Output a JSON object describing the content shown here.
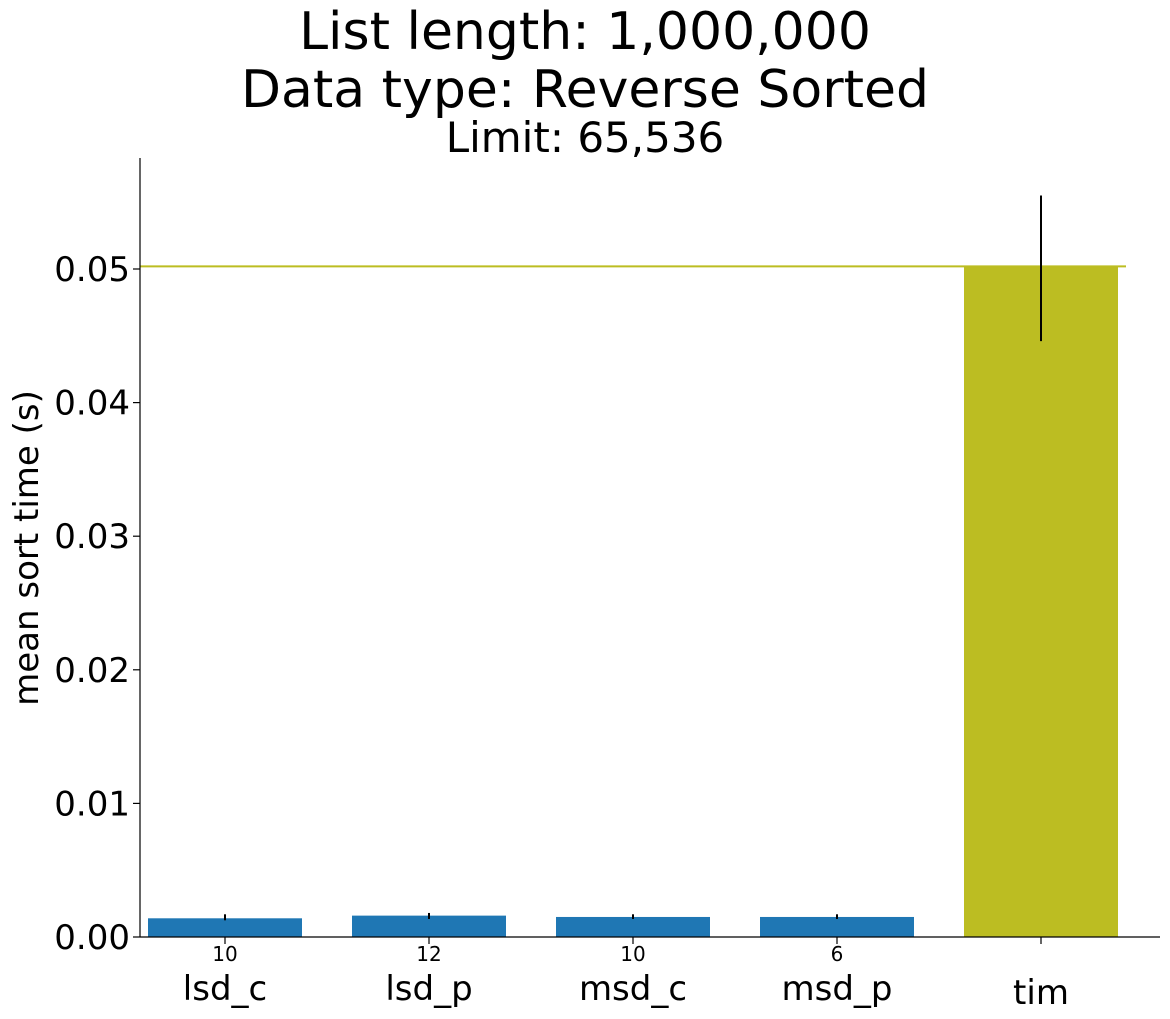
{
  "chart_data": {
    "type": "bar",
    "title_lines": [
      "List length: 1,000,000",
      "Data type: Reverse Sorted"
    ],
    "subtitle": "Limit: 65,536",
    "xlabel": "",
    "ylabel": "mean sort time (s)",
    "ylim": [
      0,
      0.058
    ],
    "yticks": [
      0.0,
      0.01,
      0.02,
      0.03,
      0.04,
      0.05
    ],
    "ytick_labels": [
      "0.00",
      "0.01",
      "0.02",
      "0.03",
      "0.04",
      "0.05"
    ],
    "categories": [
      "lsd_c",
      "lsd_p",
      "msd_c",
      "msd_p",
      "tim"
    ],
    "values": [
      0.0014,
      0.0016,
      0.0015,
      0.0015,
      0.0502
    ],
    "error_low": [
      0.00125,
      0.00135,
      0.00135,
      0.00135,
      0.0446
    ],
    "error_high": [
      0.0017,
      0.0018,
      0.0017,
      0.0017,
      0.0555
    ],
    "bar_annotations": [
      "10",
      "12",
      "10",
      "6",
      ""
    ],
    "bar_colors": [
      "#1f77b4",
      "#1f77b4",
      "#1f77b4",
      "#1f77b4",
      "#bcbd22"
    ],
    "reference_line": {
      "value": 0.0502,
      "color": "#bcbd22"
    },
    "grid": false,
    "legend": "none"
  }
}
